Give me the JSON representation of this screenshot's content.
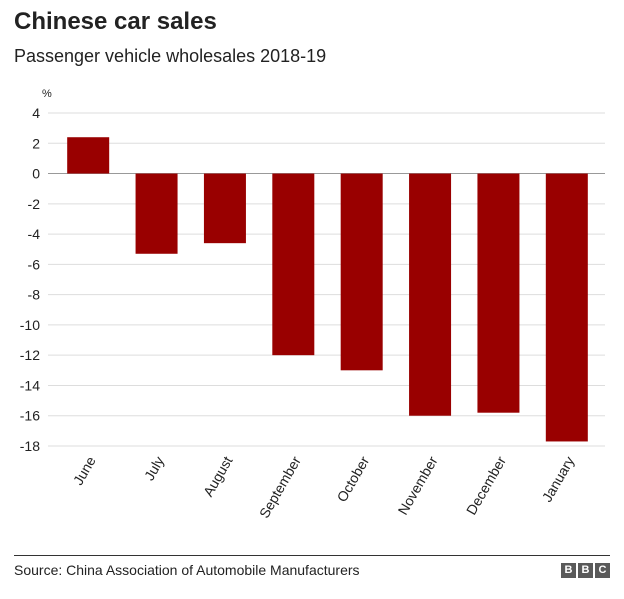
{
  "header": {
    "title": "Chinese car sales",
    "subtitle": "Passenger vehicle wholesales 2018-19"
  },
  "footer": {
    "source": "Source: China Association of Automobile Manufacturers",
    "logo_letters": [
      "B",
      "B",
      "C"
    ]
  },
  "chart_data": {
    "type": "bar",
    "title": "Chinese car sales",
    "subtitle": "Passenger vehicle wholesales 2018-19",
    "ylabel": "%",
    "xlabel": "",
    "categories": [
      "June",
      "July",
      "August",
      "September",
      "October",
      "November",
      "December",
      "January"
    ],
    "values": [
      2.4,
      -5.3,
      -4.6,
      -12.0,
      -13.0,
      -16.0,
      -15.8,
      -17.7
    ],
    "ylim": [
      -18,
      4
    ],
    "yticks": [
      4,
      2,
      0,
      -2,
      -4,
      -6,
      -8,
      -10,
      -12,
      -14,
      -16,
      -18
    ],
    "grid": true,
    "bar_color": "#990000",
    "grid_color": "#dddddd",
    "zero_line_color": "#999999"
  }
}
